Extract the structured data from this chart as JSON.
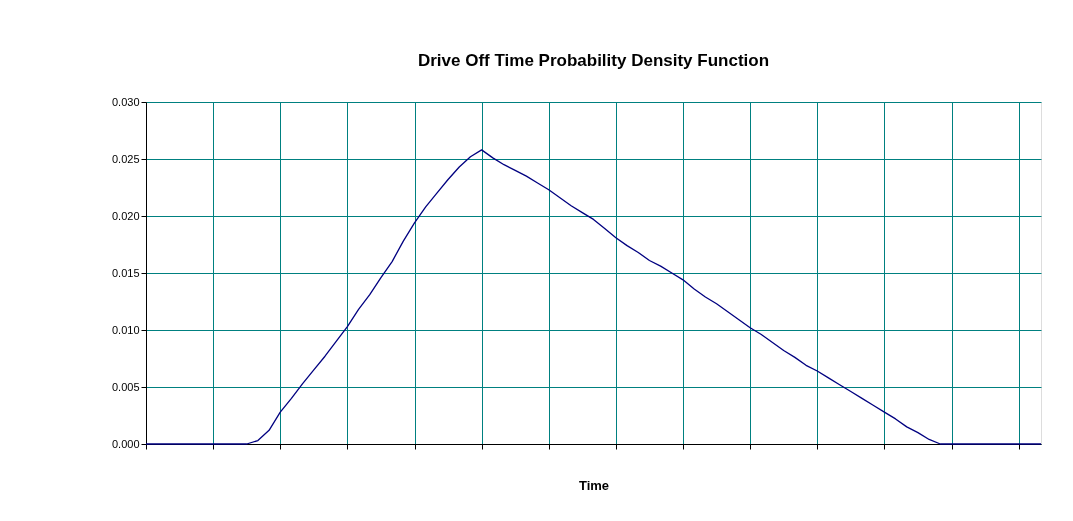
{
  "chart_data": {
    "type": "line",
    "title": "Drive Off Time Probability Density Function",
    "xlabel": "Time",
    "categories": [
      null,
      null,
      null,
      null,
      null,
      null,
      null,
      null,
      null,
      null,
      null,
      null,
      null,
      null,
      null,
      null,
      null,
      null,
      null,
      null,
      null,
      null,
      null,
      null,
      null,
      null,
      null,
      null,
      null,
      null,
      null,
      null,
      null,
      null,
      null,
      null,
      null,
      null,
      null,
      null,
      null,
      null,
      null,
      null,
      null,
      null,
      null,
      null,
      null,
      null,
      null,
      null,
      null,
      null,
      null,
      null,
      null,
      null,
      null,
      null,
      null,
      null,
      null,
      null,
      null,
      null,
      null,
      null,
      null,
      null,
      null,
      null,
      null,
      null,
      null,
      null,
      null,
      null,
      null,
      null,
      null
    ],
    "series": [
      {
        "color": "#000080",
        "values": [
          0,
          0,
          0,
          0,
          0,
          0,
          0,
          0,
          0,
          0,
          0.0003,
          0.0012,
          0.0028,
          0.004,
          0.0053,
          0.0065,
          0.0077,
          0.009,
          0.0103,
          0.0118,
          0.0131,
          0.0146,
          0.016,
          0.0178,
          0.0194,
          0.0208,
          0.022,
          0.0232,
          0.0243,
          0.0252,
          0.0258,
          0.0251,
          0.0245,
          0.024,
          0.0235,
          0.0229,
          0.0223,
          0.0216,
          0.0209,
          0.0203,
          0.0197,
          0.0189,
          0.0181,
          0.0174,
          0.0168,
          0.0161,
          0.0156,
          0.015,
          0.0144,
          0.0136,
          0.0129,
          0.0123,
          0.0116,
          0.0109,
          0.0102,
          0.0096,
          0.0089,
          0.0082,
          0.0076,
          0.0069,
          0.0064,
          0.0058,
          0.0052,
          0.0046,
          0.004,
          0.0034,
          0.0028,
          0.0022,
          0.0015,
          0.001,
          0.0004,
          0,
          0,
          0,
          0,
          0,
          0,
          0,
          0,
          0,
          0
        ]
      }
    ],
    "ylim": [
      0,
      0.03
    ],
    "yticks": [
      {
        "value": 0,
        "label": "0.000"
      },
      {
        "value": 0.005,
        "label": "0.005"
      },
      {
        "value": 0.01,
        "label": "0.010"
      },
      {
        "value": 0.015,
        "label": "0.015"
      },
      {
        "value": 0.02,
        "label": "0.020"
      },
      {
        "value": 0.025,
        "label": "0.025"
      },
      {
        "value": 0.03,
        "label": "0.030"
      }
    ],
    "grid": true,
    "marker": "none",
    "line_style": "solid",
    "tick_labels": "y"
  }
}
